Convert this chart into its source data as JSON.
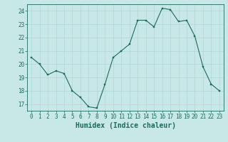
{
  "x": [
    0,
    1,
    2,
    3,
    4,
    5,
    6,
    7,
    8,
    9,
    10,
    11,
    12,
    13,
    14,
    15,
    16,
    17,
    18,
    19,
    20,
    21,
    22,
    23
  ],
  "y": [
    20.5,
    20.0,
    19.2,
    19.5,
    19.3,
    18.0,
    17.5,
    16.8,
    16.7,
    18.5,
    20.5,
    21.0,
    21.5,
    23.3,
    23.3,
    22.8,
    24.2,
    24.1,
    23.2,
    23.3,
    22.1,
    19.8,
    18.5,
    18.0
  ],
  "line_color": "#1a6b5a",
  "marker_color": "#1a6b5a",
  "bg_color": "#c8e8e8",
  "grid_color": "#b0d4d4",
  "xlabel": "Humidex (Indice chaleur)",
  "ylim": [
    16.5,
    24.5
  ],
  "yticks": [
    17,
    18,
    19,
    20,
    21,
    22,
    23,
    24
  ],
  "xticks": [
    0,
    1,
    2,
    3,
    4,
    5,
    6,
    7,
    8,
    9,
    10,
    11,
    12,
    13,
    14,
    15,
    16,
    17,
    18,
    19,
    20,
    21,
    22,
    23
  ],
  "label_color": "#1a6b5a",
  "tick_color": "#1a6b5a",
  "font_size": 5.5,
  "xlabel_size": 7.0,
  "xlim": [
    -0.5,
    23.5
  ]
}
